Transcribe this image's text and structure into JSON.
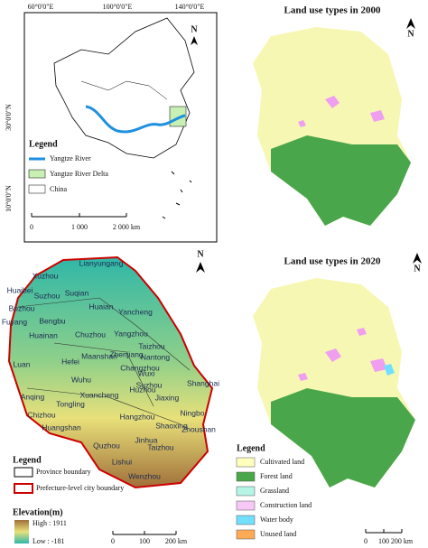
{
  "china_map": {
    "lon_labels": [
      "60°0'0\"E",
      "100°0'0\"E",
      "140°0'0\"E"
    ],
    "lat_labels": [
      "30°0'0\"N",
      "10°0'0\"N"
    ],
    "north": "N",
    "legend_title": "Legend",
    "legend_items": [
      "Yangtze River",
      "Yangtze River Delta",
      "China"
    ],
    "scale_labels": [
      "0",
      "1 000",
      "2 000 km"
    ]
  },
  "land_use_2000": {
    "title": "Land use types in 2000",
    "north": "N"
  },
  "elevation_map": {
    "north": "N",
    "cities": [
      "Lianyungang",
      "Xuzhou",
      "Suqian",
      "Huaibei",
      "Suzhou",
      "Bozhou",
      "Huaian",
      "Bengbu",
      "Yancheng",
      "Fuyang",
      "Huainan",
      "Chuzhou",
      "Yangzhou",
      "Taizhou",
      "Nantong",
      "Luan",
      "Hefei",
      "Maanshan",
      "Zhenjiang",
      "Changzhou",
      "Wuxi",
      "Suzhou",
      "Shanghai",
      "Anqing",
      "Wuhu",
      "Xuancheng",
      "Huzhou",
      "Jiaxing",
      "Chizhou",
      "Tongling",
      "Hangzhou",
      "Shaoxing",
      "Ningbo",
      "Huangshan",
      "Jinhua",
      "Taizhou",
      "Zhoushan",
      "Quzhou",
      "Lishui",
      "Wenzhou"
    ],
    "legend_title": "Legend",
    "legend_items": [
      "Province boundary",
      "Prefecture-level city boundary"
    ],
    "elevation_title": "Elevation(m)",
    "elevation_high": "High : 1911",
    "elevation_low": "Low : -181",
    "scale_labels": [
      "0",
      "100",
      "200 km"
    ]
  },
  "land_use_2020": {
    "title": "Land use types in 2020",
    "north": "N",
    "legend_title": "Legend",
    "legend_items": [
      "Cultivated land",
      "Forest land",
      "Grassland",
      "Construction land",
      "Water body",
      "Unused land"
    ],
    "scale_labels": [
      "0",
      "100",
      "200 km"
    ]
  }
}
